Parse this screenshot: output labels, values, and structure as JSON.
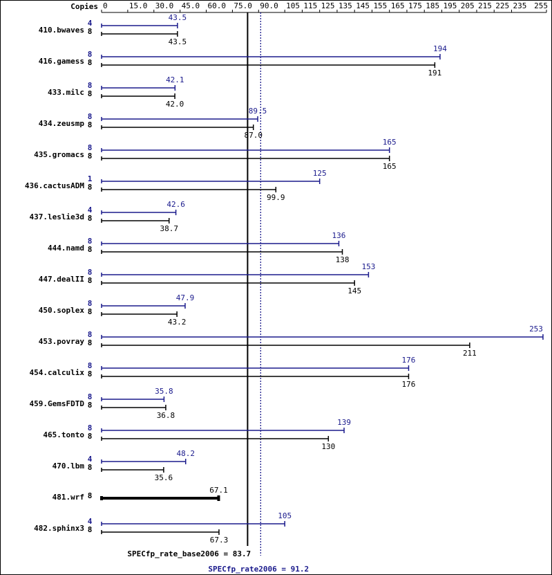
{
  "chart_data": {
    "type": "spec-bar",
    "copies_label": "Copies",
    "categories": [
      "410.bwaves",
      "416.gamess",
      "433.milc",
      "434.zeusmp",
      "435.gromacs",
      "436.cactusADM",
      "437.leslie3d",
      "444.namd",
      "447.dealII",
      "450.soplex",
      "453.povray",
      "454.calculix",
      "459.GemsFDTD",
      "465.tonto",
      "470.lbm",
      "481.wrf",
      "482.sphinx3"
    ],
    "series": [
      {
        "name": "peak",
        "color": "#1a1a8c",
        "copies": [
          4,
          8,
          8,
          8,
          8,
          1,
          4,
          8,
          8,
          8,
          8,
          8,
          8,
          8,
          4,
          null,
          4
        ],
        "values": [
          43.5,
          194,
          42.1,
          89.5,
          165,
          125,
          42.6,
          136,
          153,
          47.9,
          253,
          176,
          35.8,
          139,
          48.2,
          null,
          105
        ],
        "value_labels": [
          "43.5",
          "194",
          "42.1",
          "89.5",
          "165",
          "125",
          "42.6",
          "136",
          "153",
          "47.9",
          "253",
          "176",
          "35.8",
          "139",
          "48.2",
          null,
          "105"
        ]
      },
      {
        "name": "base",
        "color": "#000000",
        "copies": [
          8,
          8,
          8,
          8,
          8,
          8,
          8,
          8,
          8,
          8,
          8,
          8,
          8,
          8,
          8,
          8,
          8
        ],
        "values": [
          43.5,
          191,
          42.0,
          87.0,
          165,
          99.9,
          38.7,
          138,
          145,
          43.2,
          211,
          176,
          36.8,
          130,
          35.6,
          67.1,
          67.3
        ],
        "value_labels": [
          "43.5",
          "191",
          "42.0",
          "87.0",
          "165",
          "99.9",
          "38.7",
          "138",
          "145",
          "43.2",
          "211",
          "176",
          "36.8",
          "130",
          "35.6",
          "67.1",
          "67.3"
        ]
      }
    ],
    "reference_lines": [
      {
        "value": 83.7,
        "label": "SPECfp_rate_base2006 = 83.7",
        "color": "#000000",
        "dash": false
      },
      {
        "value": 91.2,
        "label": "SPECfp_rate2006 = 91.2",
        "color": "#1a1a8c",
        "dash": true
      }
    ],
    "xlim": [
      0,
      255
    ],
    "xticks": [
      0,
      {
        "value": 15,
        "label": "15.0"
      },
      {
        "value": 30,
        "label": "30.0"
      },
      {
        "value": 45,
        "label": "45.0"
      },
      {
        "value": 60,
        "label": "60.0"
      },
      {
        "value": 75,
        "label": "75.0"
      },
      {
        "value": 90,
        "label": "90.0"
      },
      105,
      115,
      125,
      135,
      145,
      155,
      165,
      175,
      185,
      195,
      205,
      215,
      225,
      235,
      255
    ]
  }
}
